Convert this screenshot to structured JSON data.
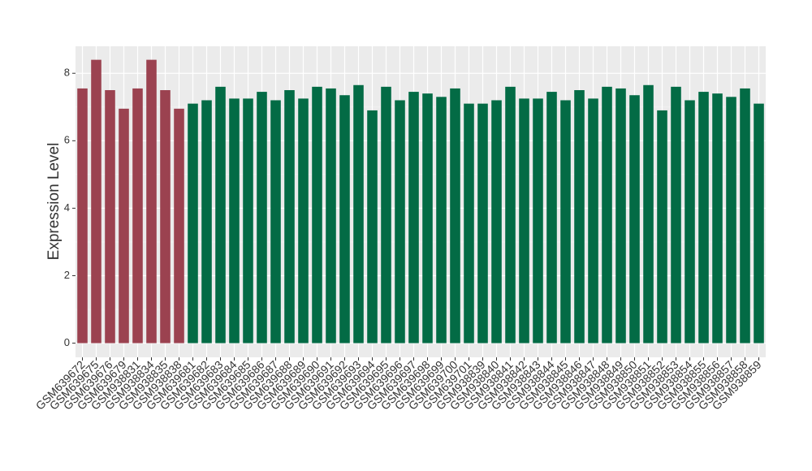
{
  "chart_data": {
    "type": "bar",
    "y_label": "Expression Level",
    "categories": [
      "GSM639672",
      "GSM639675",
      "GSM639676",
      "GSM639679",
      "GSM938831",
      "GSM938834",
      "GSM938835",
      "GSM938838",
      "GSM639681",
      "GSM639682",
      "GSM639683",
      "GSM639684",
      "GSM639685",
      "GSM639686",
      "GSM639687",
      "GSM639688",
      "GSM639689",
      "GSM639690",
      "GSM639691",
      "GSM639692",
      "GSM639693",
      "GSM639694",
      "GSM639695",
      "GSM639696",
      "GSM639697",
      "GSM639698",
      "GSM639699",
      "GSM639700",
      "GSM639701",
      "GSM938839",
      "GSM938840",
      "GSM938841",
      "GSM938842",
      "GSM938843",
      "GSM938844",
      "GSM938845",
      "GSM938846",
      "GSM938847",
      "GSM938848",
      "GSM938849",
      "GSM938850",
      "GSM938851",
      "GSM938852",
      "GSM938853",
      "GSM938854",
      "GSM938855",
      "GSM938856",
      "GSM938857",
      "GSM938858",
      "GSM938859"
    ],
    "values": [
      7.55,
      8.4,
      7.5,
      6.95,
      7.55,
      8.4,
      7.5,
      6.95,
      7.1,
      7.2,
      7.6,
      7.25,
      7.25,
      7.45,
      7.2,
      7.5,
      7.25,
      7.6,
      7.55,
      7.35,
      7.65,
      6.9,
      7.6,
      7.2,
      7.45,
      7.4,
      7.3,
      7.55,
      7.1,
      7.1,
      7.2,
      7.6,
      7.25,
      7.25,
      7.45,
      7.2,
      7.5,
      7.25,
      7.6,
      7.55,
      7.35,
      7.65,
      6.9,
      7.6,
      7.2,
      7.45,
      7.4,
      7.3,
      7.55,
      7.1
    ],
    "colors": [
      "#9b4250",
      "#9b4250",
      "#9b4250",
      "#9b4250",
      "#9b4250",
      "#9b4250",
      "#9b4250",
      "#9b4250",
      "#036b45",
      "#036b45",
      "#036b45",
      "#036b45",
      "#036b45",
      "#036b45",
      "#036b45",
      "#036b45",
      "#036b45",
      "#036b45",
      "#036b45",
      "#036b45",
      "#036b45",
      "#036b45",
      "#036b45",
      "#036b45",
      "#036b45",
      "#036b45",
      "#036b45",
      "#036b45",
      "#036b45",
      "#036b45",
      "#036b45",
      "#036b45",
      "#036b45",
      "#036b45",
      "#036b45",
      "#036b45",
      "#036b45",
      "#036b45",
      "#036b45",
      "#036b45",
      "#036b45",
      "#036b45",
      "#036b45",
      "#036b45",
      "#036b45",
      "#036b45",
      "#036b45",
      "#036b45",
      "#036b45",
      "#036b45"
    ],
    "ylim": [
      -0.42,
      8.8
    ],
    "yticks": [
      0,
      2,
      4,
      6,
      8
    ],
    "grid": true
  }
}
